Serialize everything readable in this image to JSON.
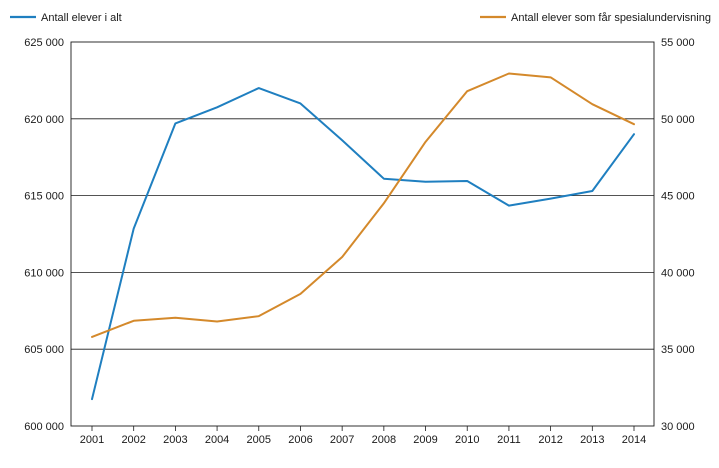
{
  "chart_data": {
    "type": "line",
    "x": [
      "2001",
      "2002",
      "2003",
      "2004",
      "2005",
      "2006",
      "2007",
      "2008",
      "2009",
      "2010",
      "2011",
      "2012",
      "2013",
      "2014"
    ],
    "series": [
      {
        "name": "Antall elever i alt",
        "axis": "left",
        "color": "#1f7fc0",
        "values": [
          601750,
          612850,
          619700,
          620750,
          622000,
          621000,
          618600,
          616100,
          615900,
          615950,
          614350,
          614800,
          615300,
          619000
        ]
      },
      {
        "name": "Antall elever som får spesialundervisning",
        "axis": "right",
        "color": "#d4892b",
        "values": [
          35800,
          36850,
          37050,
          36800,
          37150,
          38600,
          41000,
          44500,
          48500,
          51800,
          52950,
          52700,
          50950,
          49650
        ]
      }
    ],
    "yleft": {
      "ylim": [
        600000,
        625000
      ],
      "ticks": [
        600000,
        605000,
        610000,
        615000,
        620000,
        625000
      ],
      "tick_labels": [
        "600 000",
        "605 000",
        "610 000",
        "615 000",
        "620 000",
        "625 000"
      ]
    },
    "yright": {
      "ylim": [
        30000,
        55000
      ],
      "ticks": [
        30000,
        35000,
        40000,
        45000,
        50000,
        55000
      ],
      "tick_labels": [
        "30 000",
        "35 000",
        "40 000",
        "45 000",
        "50 000",
        "55 000"
      ]
    },
    "title": "",
    "xlabel": "",
    "grid": true,
    "legend_placement": "top"
  }
}
